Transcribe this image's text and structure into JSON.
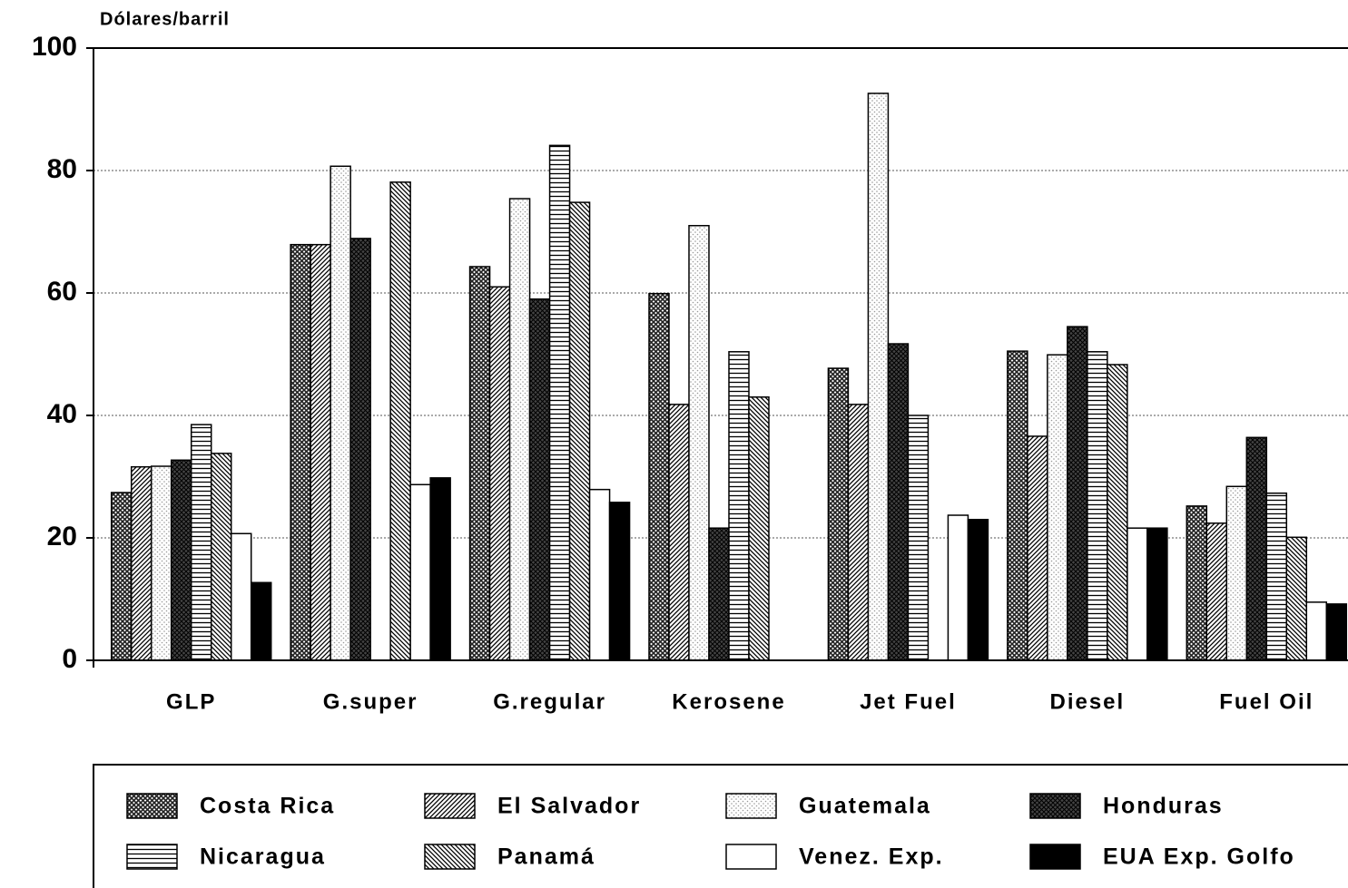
{
  "chart_data": {
    "type": "bar",
    "y_label": "Dólares/barril",
    "categories": [
      "GLP",
      "G.super",
      "G.regular",
      "Kerosene",
      "Jet Fuel",
      "Diesel",
      "Fuel Oil"
    ],
    "series": [
      {
        "name": "Costa Rica",
        "color": "#222222",
        "values": [
          27.4,
          67.9,
          64.3,
          59.9,
          47.7,
          50.5,
          25.2
        ]
      },
      {
        "name": "El Salvador",
        "color": "#333333",
        "values": [
          31.6,
          67.9,
          61.0,
          41.8,
          41.8,
          36.6,
          22.4
        ]
      },
      {
        "name": "Guatemala",
        "color": "#999999",
        "values": [
          31.7,
          80.7,
          75.4,
          71.0,
          92.6,
          49.9,
          28.4
        ]
      },
      {
        "name": "Honduras",
        "color": "#111111",
        "values": [
          32.7,
          68.9,
          59.0,
          21.6,
          51.7,
          54.5,
          36.4
        ]
      },
      {
        "name": "Nicaragua",
        "color": "#333333",
        "values": [
          38.5,
          null,
          84.1,
          50.4,
          40.0,
          50.4,
          27.3
        ]
      },
      {
        "name": "Panamá",
        "color": "#222222",
        "values": [
          33.8,
          78.1,
          74.8,
          43.0,
          null,
          48.3,
          20.1
        ]
      },
      {
        "name": "Venez. Exp.",
        "color": "#ffffff",
        "values": [
          20.7,
          28.7,
          27.9,
          null,
          23.7,
          21.6,
          9.5
        ]
      },
      {
        "name": "EUA Exp. Golfo",
        "color": "#000000",
        "values": [
          12.7,
          29.8,
          25.8,
          null,
          23.0,
          21.6,
          9.2
        ]
      }
    ],
    "ylim": [
      0,
      100
    ],
    "yticks": [
      0,
      20,
      40,
      60,
      80,
      100
    ],
    "grid": true
  }
}
